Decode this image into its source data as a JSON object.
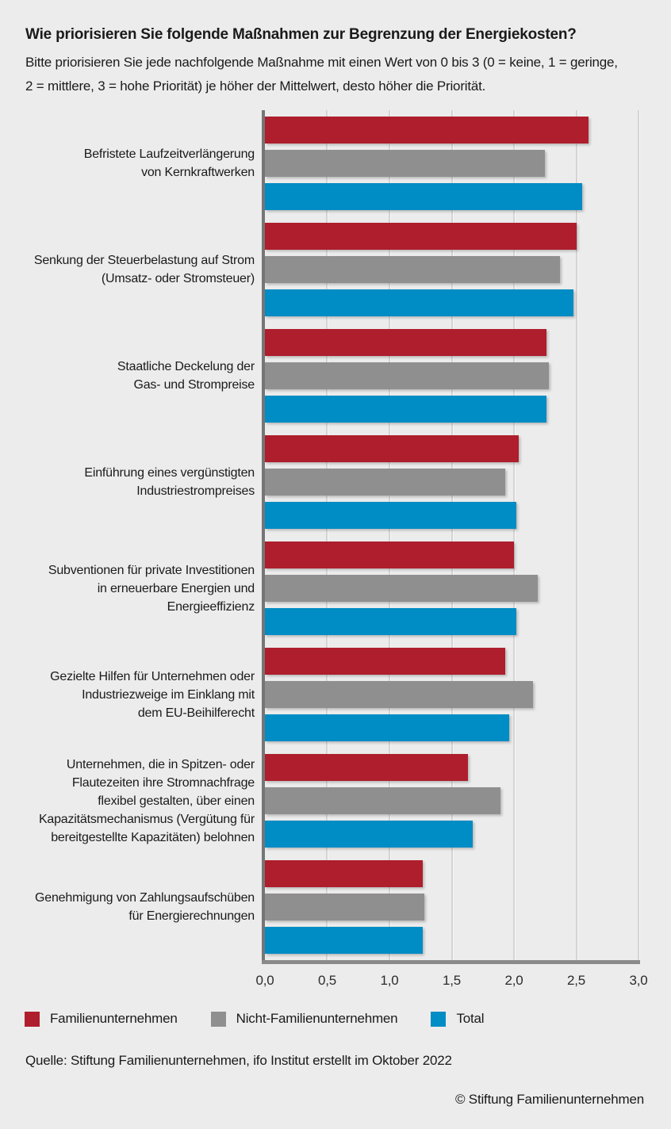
{
  "header": {
    "title": "Wie priorisieren Sie folgende Maßnahmen zur Begrenzung der Energiekosten?",
    "subtitle": "Bitte priorisieren Sie jede nachfolgende Maßnahme mit einen Wert von 0 bis 3 (0 = keine, 1 = geringe,\n2 = mittlere, 3 = hohe Priorität) je höher der Mittelwert, desto höher die Priorität."
  },
  "chart_data": {
    "type": "bar",
    "orientation": "horizontal",
    "title": "Wie priorisieren Sie folgende Maßnahmen zur Begrenzung der Energiekosten?",
    "subtitle": "Bitte priorisieren Sie jede nachfolgende Maßnahme mit einen Wert von 0 bis 3 (0 = keine, 1 = geringe, 2 = mittlere, 3 = hohe Priorität) je höher der Mittelwert, desto höher die Priorität.",
    "categories": [
      "Befristete Laufzeitverlängerung\nvon Kernkraftwerken",
      "Senkung der Steuerbelastung auf Strom\n(Umsatz- oder Stromsteuer)",
      "Staatliche Deckelung der\nGas- und Strompreise",
      "Einführung eines vergünstigten\nIndustriestrompreises",
      "Subventionen für private Investitionen\nin erneuerbare Energien und\nEnergieeffizienz",
      "Gezielte Hilfen für Unternehmen oder\nIndustriezweige im Einklang mit\ndem EU-Beihilferecht",
      "Unternehmen, die in Spitzen- oder\nFlautezeiten ihre Stromnachfrage\nflexibel gestalten, über einen\nKapazitätsmechanismus (Vergütung für\nbereitgestellte Kapazitäten) belohnen",
      "Genehmigung von Zahlungsaufschüben\nfür Energierechnungen"
    ],
    "series": [
      {
        "id": "familienunternehmen",
        "name": "Familienunternehmen",
        "color": "#ae1e2c",
        "values": [
          2.6,
          2.5,
          2.26,
          2.04,
          2.0,
          1.93,
          1.63,
          1.27
        ]
      },
      {
        "id": "nicht-familienunternehmen",
        "name": "Nicht-Familienunternehmen",
        "color": "#8f8f8f",
        "values": [
          2.25,
          2.37,
          2.28,
          1.93,
          2.19,
          2.15,
          1.89,
          1.28
        ]
      },
      {
        "id": "total",
        "name": "Total",
        "color": "#008cc4",
        "values": [
          2.55,
          2.48,
          2.26,
          2.02,
          2.02,
          1.96,
          1.67,
          1.27
        ]
      }
    ],
    "xlim": [
      0,
      3
    ],
    "xticks": [
      0,
      0.5,
      1,
      1.5,
      2,
      2.5,
      3
    ],
    "xtick_labels": [
      "0,0",
      "0,5",
      "1,0",
      "1,5",
      "2,0",
      "2,5",
      "3,0"
    ],
    "grid": true,
    "legend_position": "bottom"
  },
  "footer": {
    "source": "Quelle: Stiftung Familienunternehmen, ifo Institut erstellt im Oktober 2022",
    "copyright": "© Stiftung Familienunternehmen"
  }
}
